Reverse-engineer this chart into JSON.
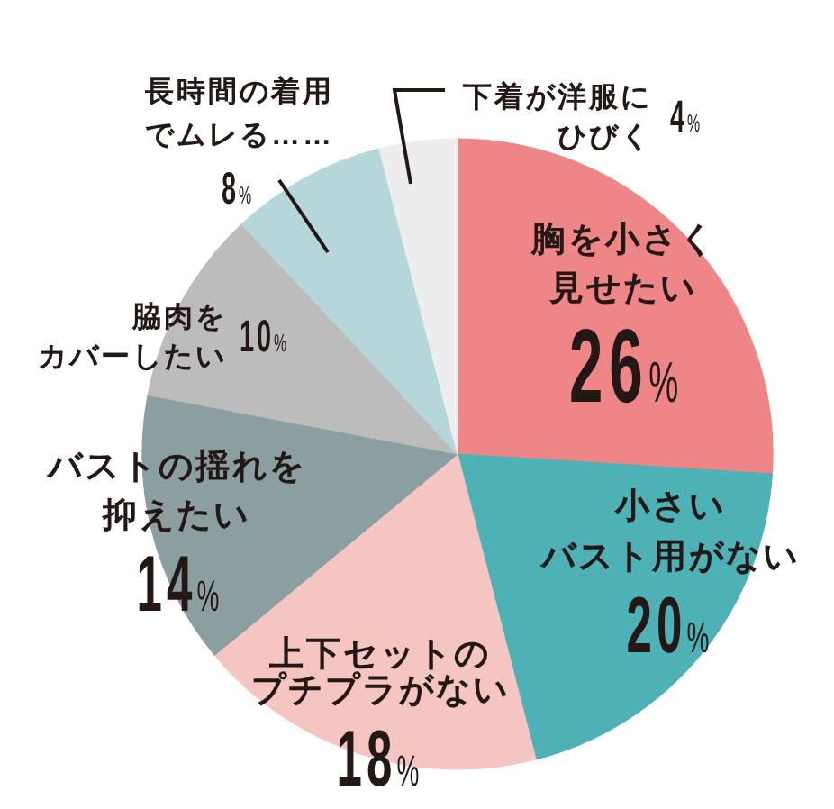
{
  "chart_data": {
    "type": "pie",
    "categories": [
      "胸を小さく見せたい",
      "小さいバスト用がない",
      "上下セットのプチプラがない",
      "バストの揺れを抑えたい",
      "脇肉をカバーしたい",
      "長時間の着用でムレる……",
      "下着が洋服にひびく"
    ],
    "values": [
      26,
      20,
      18,
      14,
      10,
      8,
      4
    ],
    "colors": [
      "#ee8587",
      "#4db1b6",
      "#f5c5c1",
      "#8b9ea0",
      "#bcbcbc",
      "#b5d7da",
      "#ededed"
    ],
    "value_labels": [
      "26%",
      "20%",
      "18%",
      "14%",
      "10%",
      "8%",
      "4%"
    ]
  }
}
